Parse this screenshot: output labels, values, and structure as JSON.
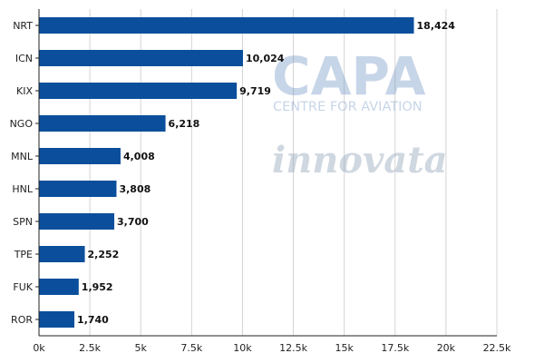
{
  "chart_data": {
    "type": "bar",
    "orientation": "horizontal",
    "categories": [
      "NRT",
      "ICN",
      "KIX",
      "NGO",
      "MNL",
      "HNL",
      "SPN",
      "TPE",
      "FUK",
      "ROR"
    ],
    "values": [
      18424,
      10024,
      9719,
      6218,
      4008,
      3808,
      3700,
      2252,
      1952,
      1740
    ],
    "value_labels": [
      "18,424",
      "10,024",
      "9,719",
      "6,218",
      "4,008",
      "3,808",
      "3,700",
      "2,252",
      "1,952",
      "1,740"
    ],
    "xlim": [
      0,
      22500
    ],
    "x_ticks": [
      0,
      2500,
      5000,
      7500,
      10000,
      12500,
      15000,
      17500,
      20000,
      22500
    ],
    "x_tick_labels": [
      "0k",
      "2.5k",
      "5k",
      "7.5k",
      "10k",
      "12.5k",
      "15k",
      "17.5k",
      "20k",
      "22.5k"
    ],
    "title": "",
    "xlabel": "",
    "ylabel": "",
    "grid": "vertical",
    "bar_color": "#0b4f9c",
    "grid_color": "#d4d4d4"
  },
  "watermark": {
    "capa_text": "CAPA",
    "capa_sub": "CENTRE FOR AVIATION",
    "innovata_text": "innovata"
  }
}
